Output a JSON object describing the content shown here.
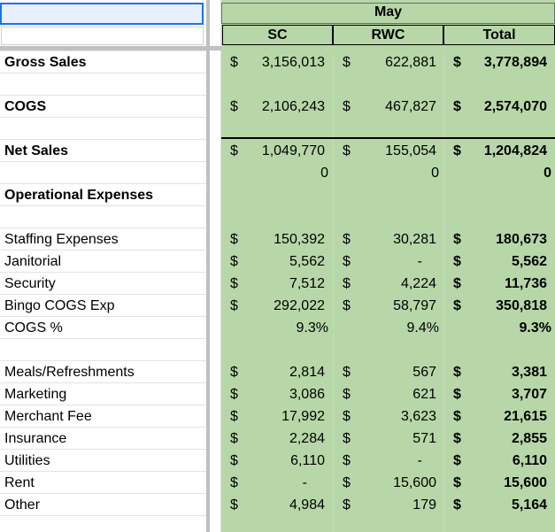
{
  "header": {
    "month": "May",
    "columns": [
      "SC",
      "RWC",
      "Total"
    ]
  },
  "currency_symbol": "$",
  "rows": [
    {
      "label": "Gross Sales",
      "bold": true,
      "sc_dollar": "$",
      "sc": "3,156,013",
      "rwc_dollar": "$",
      "rwc": "622,881",
      "total_dollar": "$",
      "total": "3,778,894"
    },
    {
      "label": "COGS",
      "bold": true,
      "sc_dollar": "$",
      "sc": "2,106,243",
      "rwc_dollar": "$",
      "rwc": "467,827",
      "total_dollar": "$",
      "total": "2,574,070"
    },
    {
      "label": "Net Sales",
      "bold": true,
      "sc_dollar": "$",
      "sc": "1,049,770",
      "rwc_dollar": "$",
      "rwc": "155,054",
      "total_dollar": "$",
      "total": "1,204,824"
    },
    {
      "label": "",
      "sc": "0",
      "rwc": "0",
      "total": "0"
    },
    {
      "label": "Operational Expenses",
      "bold": true
    },
    {
      "label": "Staffing Expenses",
      "sc_dollar": "$",
      "sc": "150,392",
      "rwc_dollar": "$",
      "rwc": "30,281",
      "total_dollar": "$",
      "total": "180,673"
    },
    {
      "label": "Janitorial",
      "sc_dollar": "$",
      "sc": "5,562",
      "rwc_dollar": "$",
      "rwc": "-",
      "total_dollar": "$",
      "total": "5,562"
    },
    {
      "label": "Security",
      "sc_dollar": "$",
      "sc": "7,512",
      "rwc_dollar": "$",
      "rwc": "4,224",
      "total_dollar": "$",
      "total": "11,736"
    },
    {
      "label": "Bingo COGS Exp",
      "sc_dollar": "$",
      "sc": "292,022",
      "rwc_dollar": "$",
      "rwc": "58,797",
      "total_dollar": "$",
      "total": "350,818"
    },
    {
      "label": "COGS %",
      "sc": "9.3%",
      "rwc": "9.4%",
      "total": "9.3%"
    },
    {
      "label": "Meals/Refreshments",
      "sc_dollar": "$",
      "sc": "2,814",
      "rwc_dollar": "$",
      "rwc": "567",
      "total_dollar": "$",
      "total": "3,381"
    },
    {
      "label": "Marketing",
      "sc_dollar": "$",
      "sc": "3,086",
      "rwc_dollar": "$",
      "rwc": "621",
      "total_dollar": "$",
      "total": "3,707"
    },
    {
      "label": "Merchant Fee",
      "sc_dollar": "$",
      "sc": "17,992",
      "rwc_dollar": "$",
      "rwc": "3,623",
      "total_dollar": "$",
      "total": "21,615"
    },
    {
      "label": "Insurance",
      "sc_dollar": "$",
      "sc": "2,284",
      "rwc_dollar": "$",
      "rwc": "571",
      "total_dollar": "$",
      "total": "2,855"
    },
    {
      "label": "Utilities",
      "sc_dollar": "$",
      "sc": "6,110",
      "rwc_dollar": "$",
      "rwc": "-",
      "total_dollar": "$",
      "total": "6,110"
    },
    {
      "label": "Rent",
      "sc_dollar": "$",
      "sc": "-",
      "rwc_dollar": "$",
      "rwc": "15,600",
      "total_dollar": "$",
      "total": "15,600"
    },
    {
      "label": "Other",
      "sc_dollar": "$",
      "sc": "4,984",
      "rwc_dollar": "$",
      "rwc": "179",
      "total_dollar": "$",
      "total": "5,164"
    }
  ]
}
